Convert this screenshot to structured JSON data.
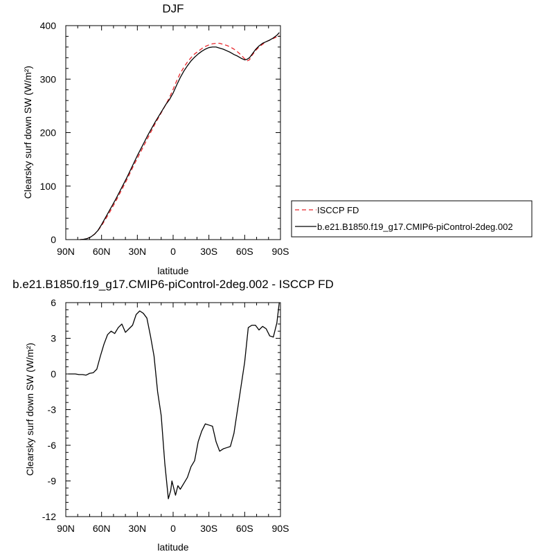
{
  "chart_data": [
    {
      "type": "line",
      "title": "DJF",
      "xlabel": "latitude",
      "ylabel": "Clearsky surf down SW (W/m²)",
      "xlim": [
        90,
        -90
      ],
      "ylim": [
        0,
        400
      ],
      "x_ticks": [
        {
          "value": 90,
          "label": "90N"
        },
        {
          "value": 60,
          "label": "60N"
        },
        {
          "value": 30,
          "label": "30N"
        },
        {
          "value": 0,
          "label": "0"
        },
        {
          "value": -30,
          "label": "30S"
        },
        {
          "value": -60,
          "label": "60S"
        },
        {
          "value": -90,
          "label": "90S"
        }
      ],
      "y_ticks": [
        {
          "value": 0,
          "label": "0"
        },
        {
          "value": 100,
          "label": "100"
        },
        {
          "value": 200,
          "label": "200"
        },
        {
          "value": 300,
          "label": "300"
        },
        {
          "value": 400,
          "label": "400"
        }
      ],
      "legend": "right",
      "series": [
        {
          "name": "ISCCP FD",
          "color": "#e8262b",
          "dash": "dashed",
          "x": [
            78,
            75,
            72,
            69,
            66,
            63,
            60,
            57,
            54,
            51,
            48,
            45,
            42,
            39,
            36,
            33,
            30,
            27,
            24,
            21,
            18,
            15,
            12,
            9,
            6,
            3,
            0,
            -3,
            -6,
            -9,
            -12,
            -15,
            -18,
            -21,
            -24,
            -27,
            -30,
            -33,
            -36,
            -39,
            -42,
            -45,
            -48,
            -51,
            -54,
            -57,
            -60,
            -62,
            -64,
            -66,
            -69,
            -72,
            -75,
            -78,
            -81,
            -84,
            -87,
            -89
          ],
          "y": [
            0,
            0.6,
            2,
            5,
            10,
            17,
            26,
            37,
            48,
            60,
            72,
            85,
            98,
            111,
            125,
            139,
            152,
            165,
            178,
            191,
            204,
            217,
            229,
            241,
            253,
            266,
            281,
            297,
            311,
            322,
            332,
            340,
            347,
            352,
            357,
            361,
            364,
            366,
            367,
            367,
            365,
            363,
            360,
            356,
            351,
            345,
            338,
            334,
            336,
            344,
            353,
            360,
            365,
            370,
            373,
            376,
            379,
            382
          ]
        },
        {
          "name": "b.e21.B1850.f19_g17.CMIP6-piControl-2deg.002",
          "color": "#000000",
          "dash": "solid",
          "x": [
            78,
            75,
            72,
            69,
            66,
            63,
            60,
            57,
            54,
            51,
            48,
            45,
            42,
            39,
            36,
            33,
            30,
            27,
            24,
            21,
            18,
            15,
            12,
            9,
            6,
            3,
            0,
            -3,
            -6,
            -9,
            -12,
            -15,
            -18,
            -21,
            -24,
            -27,
            -30,
            -33,
            -36,
            -39,
            -42,
            -45,
            -48,
            -51,
            -54,
            -57,
            -60,
            -62,
            -64,
            -66,
            -69,
            -72,
            -75,
            -78,
            -81,
            -84,
            -87,
            -89
          ],
          "y": [
            0,
            0.6,
            2,
            5,
            10,
            17.3,
            28,
            40,
            52,
            64,
            76,
            89,
            102,
            115,
            129,
            143,
            157,
            170,
            183,
            196,
            208,
            220,
            231,
            242,
            253,
            262,
            274,
            289,
            303,
            315,
            325,
            334,
            341,
            347,
            352,
            356,
            359,
            360,
            360,
            358,
            356,
            353,
            350,
            346,
            343,
            339,
            336,
            337,
            340,
            346,
            355,
            362,
            367,
            370,
            373,
            377,
            382,
            387
          ]
        }
      ]
    },
    {
      "type": "line",
      "title": "b.e21.B1850.f19_g17.CMIP6-piControl-2deg.002 - ISCCP FD",
      "xlabel": "latitude",
      "ylabel": "Clearsky surf down SW (W/m²)",
      "xlim": [
        90,
        -90
      ],
      "ylim": [
        -12,
        6
      ],
      "x_ticks": [
        {
          "value": 90,
          "label": "90N"
        },
        {
          "value": 60,
          "label": "60N"
        },
        {
          "value": 30,
          "label": "30N"
        },
        {
          "value": 0,
          "label": "0"
        },
        {
          "value": -30,
          "label": "30S"
        },
        {
          "value": -60,
          "label": "60S"
        },
        {
          "value": -90,
          "label": "90S"
        }
      ],
      "y_ticks": [
        {
          "value": -12,
          "label": "-12"
        },
        {
          "value": -9,
          "label": "-9"
        },
        {
          "value": -6,
          "label": "-6"
        },
        {
          "value": -3,
          "label": "-3"
        },
        {
          "value": 0,
          "label": "0"
        },
        {
          "value": 3,
          "label": "3"
        },
        {
          "value": 6,
          "label": "6"
        }
      ],
      "series": [
        {
          "color": "#000000",
          "dash": "solid",
          "x": [
            88,
            85,
            82,
            79,
            76,
            73,
            70,
            67,
            64,
            61,
            58,
            55,
            52,
            49,
            46,
            43,
            40,
            37,
            34,
            31,
            28,
            25,
            22,
            19,
            16,
            13,
            10,
            7,
            4,
            2,
            1,
            -2,
            -4,
            -6,
            -9,
            -12,
            -15,
            -18,
            -21,
            -24,
            -27,
            -30,
            -33,
            -36,
            -39,
            -42,
            -45,
            -48,
            -51,
            -54,
            -57,
            -60,
            -63,
            -66,
            -69,
            -72,
            -75,
            -78,
            -81,
            -84,
            -87,
            -89
          ],
          "y": [
            0,
            0,
            0,
            -0.05,
            -0.05,
            -0.1,
            0.05,
            0.1,
            0.4,
            1.5,
            2.5,
            3.3,
            3.6,
            3.4,
            3.9,
            4.2,
            3.5,
            3.8,
            4.1,
            5,
            5.3,
            5.1,
            4.7,
            3.2,
            1.5,
            -1.5,
            -3.5,
            -7.5,
            -10.5,
            -9.8,
            -9.0,
            -10.2,
            -9.4,
            -9.7,
            -9.2,
            -8.7,
            -7.8,
            -7.3,
            -5.7,
            -4.8,
            -4.2,
            -4.3,
            -4.4,
            -5.7,
            -6.5,
            -6.3,
            -6.2,
            -6.1,
            -5.0,
            -3.0,
            -1.0,
            1.0,
            3.9,
            4.1,
            4.1,
            3.7,
            4.0,
            3.8,
            3.2,
            3.1,
            4.3,
            6.0
          ]
        }
      ]
    }
  ]
}
